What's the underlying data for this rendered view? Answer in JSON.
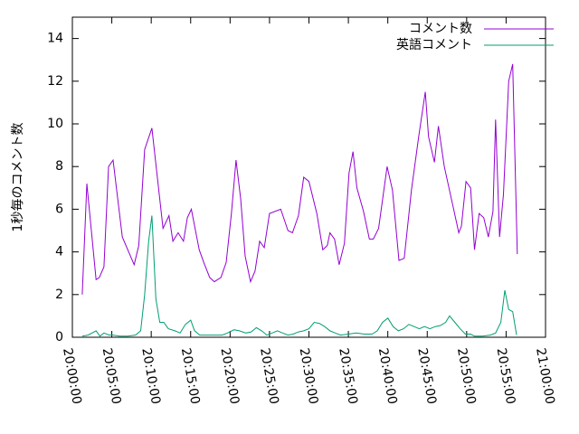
{
  "chart_data": {
    "type": "line",
    "ylabel": "1秒毎のコメント数",
    "xlim": [
      "20:00:00",
      "21:00:00"
    ],
    "xticks": [
      "20:00:00",
      "20:05:00",
      "20:10:00",
      "20:15:00",
      "20:20:00",
      "20:25:00",
      "20:30:00",
      "20:35:00",
      "20:40:00",
      "20:45:00",
      "20:50:00",
      "20:55:00",
      "21:00:00"
    ],
    "ylim": [
      0,
      15
    ],
    "yticks": [
      0,
      2,
      4,
      6,
      8,
      10,
      12,
      14
    ],
    "legend": "top-right",
    "series": [
      {
        "name": "コメント数",
        "color": "#9400d3",
        "x": [
          "20:01:15",
          "20:01:50",
          "20:03:00",
          "20:03:25",
          "20:04:00",
          "20:04:35",
          "20:05:10",
          "20:06:20",
          "20:07:50",
          "20:08:25",
          "20:09:10",
          "20:10:05",
          "20:11:30",
          "20:12:15",
          "20:12:45",
          "20:13:25",
          "20:14:05",
          "20:14:35",
          "20:15:05",
          "20:16:05",
          "20:16:40",
          "20:17:25",
          "20:18:00",
          "20:18:50",
          "20:19:30",
          "20:20:10",
          "20:20:45",
          "20:21:20",
          "20:21:55",
          "20:22:35",
          "20:23:10",
          "20:23:45",
          "20:24:20",
          "20:25:00",
          "20:26:25",
          "20:27:20",
          "20:27:55",
          "20:28:40",
          "20:29:20",
          "20:30:00",
          "20:31:00",
          "20:31:45",
          "20:32:20",
          "20:32:40",
          "20:33:15",
          "20:33:50",
          "20:34:30",
          "20:35:05",
          "20:35:35",
          "20:36:05",
          "20:36:55",
          "20:37:40",
          "20:38:10",
          "20:38:50",
          "20:39:55",
          "20:40:35",
          "20:41:25",
          "20:42:05",
          "20:43:00",
          "20:43:55",
          "20:44:45",
          "20:45:10",
          "20:45:55",
          "20:46:25",
          "20:47:10",
          "20:48:10",
          "20:49:00",
          "20:49:20",
          "20:49:55",
          "20:50:30",
          "20:51:00",
          "20:51:35",
          "20:52:10",
          "20:52:45",
          "20:53:20",
          "20:53:40",
          "20:54:10",
          "20:54:40",
          "20:55:20",
          "20:55:50",
          "20:56:25"
        ],
        "values": [
          2.0,
          7.2,
          2.7,
          2.8,
          3.3,
          8.0,
          8.3,
          4.7,
          3.4,
          4.3,
          8.8,
          9.8,
          5.1,
          5.7,
          4.5,
          4.9,
          4.5,
          5.6,
          6.0,
          4.1,
          3.5,
          2.8,
          2.6,
          2.8,
          3.5,
          5.8,
          8.3,
          6.5,
          3.8,
          2.6,
          3.1,
          4.5,
          4.2,
          5.8,
          6.0,
          5.0,
          4.9,
          5.7,
          7.5,
          7.3,
          5.8,
          4.1,
          4.3,
          4.9,
          4.6,
          3.4,
          4.4,
          7.7,
          8.7,
          7.0,
          5.9,
          4.6,
          4.6,
          5.1,
          8.0,
          6.9,
          3.6,
          3.7,
          6.9,
          9.4,
          11.5,
          9.4,
          8.2,
          9.9,
          8.0,
          6.3,
          4.9,
          5.2,
          7.3,
          7.0,
          4.1,
          5.8,
          5.6,
          4.7,
          5.9,
          10.2,
          4.7,
          6.7,
          12.0,
          12.8,
          3.9
        ]
      },
      {
        "name": "英語コメント",
        "color": "#009e73",
        "x": [
          "20:01:15",
          "20:02:00",
          "20:03:00",
          "20:03:30",
          "20:04:00",
          "20:04:40",
          "20:05:10",
          "20:06:00",
          "20:07:00",
          "20:08:00",
          "20:08:40",
          "20:09:10",
          "20:09:40",
          "20:10:05",
          "20:10:35",
          "20:11:05",
          "20:11:35",
          "20:12:10",
          "20:13:00",
          "20:13:40",
          "20:14:20",
          "20:15:00",
          "20:15:30",
          "20:16:10",
          "20:17:00",
          "20:18:00",
          "20:19:00",
          "20:19:40",
          "20:20:30",
          "20:21:10",
          "20:22:00",
          "20:22:40",
          "20:23:20",
          "20:24:00",
          "20:24:40",
          "20:25:20",
          "20:26:00",
          "20:26:40",
          "20:27:20",
          "20:28:00",
          "20:28:40",
          "20:29:20",
          "20:30:00",
          "20:30:40",
          "20:31:20",
          "20:32:00",
          "20:32:40",
          "20:33:20",
          "20:34:00",
          "20:35:00",
          "20:36:00",
          "20:37:00",
          "20:38:00",
          "20:38:40",
          "20:39:20",
          "20:40:00",
          "20:40:40",
          "20:41:20",
          "20:42:00",
          "20:42:40",
          "20:43:20",
          "20:44:00",
          "20:44:40",
          "20:45:20",
          "20:46:00",
          "20:46:40",
          "20:47:20",
          "20:47:50",
          "20:48:30",
          "20:49:10",
          "20:49:50",
          "20:50:30",
          "20:51:00",
          "20:52:00",
          "20:53:00",
          "20:53:40",
          "20:54:20",
          "20:54:50",
          "20:55:20",
          "20:55:50",
          "20:56:20"
        ],
        "values": [
          0.05,
          0.1,
          0.3,
          0.05,
          0.2,
          0.1,
          0.1,
          0.05,
          0.05,
          0.1,
          0.3,
          2.0,
          4.5,
          5.7,
          1.8,
          0.7,
          0.7,
          0.4,
          0.3,
          0.2,
          0.6,
          0.8,
          0.3,
          0.1,
          0.1,
          0.1,
          0.1,
          0.2,
          0.35,
          0.3,
          0.2,
          0.25,
          0.45,
          0.3,
          0.1,
          0.2,
          0.3,
          0.2,
          0.1,
          0.15,
          0.25,
          0.3,
          0.4,
          0.7,
          0.65,
          0.5,
          0.3,
          0.2,
          0.1,
          0.15,
          0.2,
          0.15,
          0.15,
          0.3,
          0.7,
          0.9,
          0.5,
          0.3,
          0.4,
          0.6,
          0.5,
          0.4,
          0.5,
          0.4,
          0.5,
          0.55,
          0.7,
          1.0,
          0.7,
          0.4,
          0.15,
          0.15,
          0.05,
          0.05,
          0.1,
          0.2,
          0.7,
          2.2,
          1.3,
          1.2,
          0.1
        ]
      }
    ]
  }
}
